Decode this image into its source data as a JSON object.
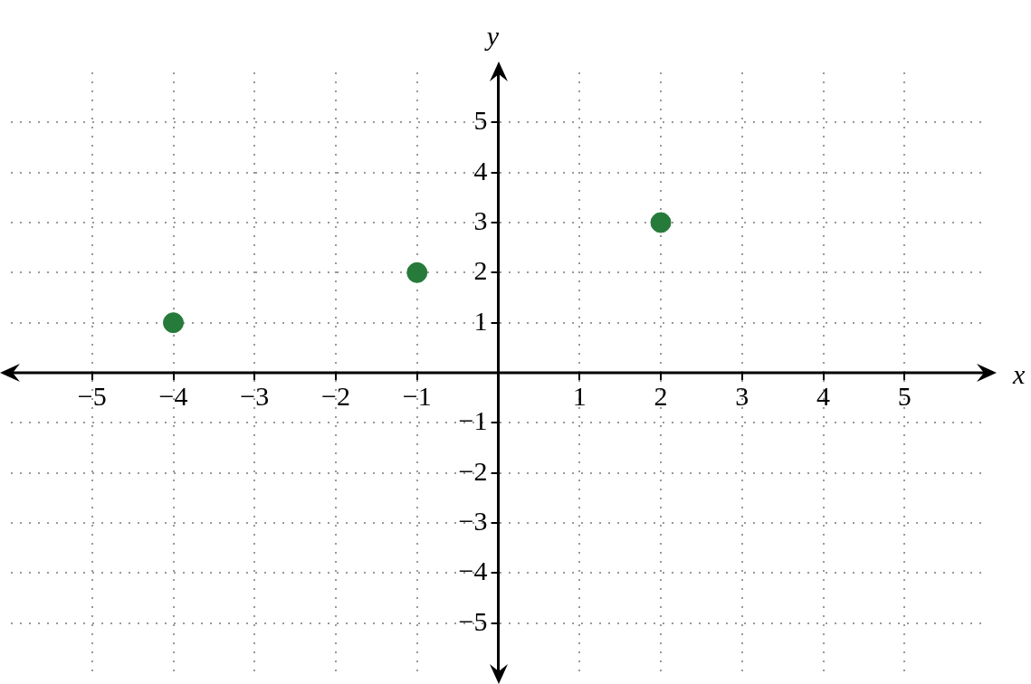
{
  "chart_data": {
    "type": "scatter",
    "xlabel": "x",
    "ylabel": "y",
    "x": [
      -4,
      -1,
      2
    ],
    "values": [
      1,
      2,
      3
    ],
    "color": "#267a3a",
    "xlim": [
      -6,
      6
    ],
    "ylim": [
      -6,
      6
    ],
    "xticks": [
      {
        "value": -5,
        "label": "−5"
      },
      {
        "value": -4,
        "label": "−4"
      },
      {
        "value": -3,
        "label": "−3"
      },
      {
        "value": -2,
        "label": "−2"
      },
      {
        "value": -1,
        "label": "−1"
      },
      1,
      2,
      3,
      4,
      5
    ],
    "yticks": [
      {
        "value": -5,
        "label": "−5"
      },
      {
        "value": -4,
        "label": "−4"
      },
      {
        "value": -3,
        "label": "−3"
      },
      {
        "value": -2,
        "label": "−2"
      },
      {
        "value": -1,
        "label": "−1"
      },
      1,
      2,
      3,
      4,
      5
    ],
    "grid": true,
    "marker": "circle"
  }
}
